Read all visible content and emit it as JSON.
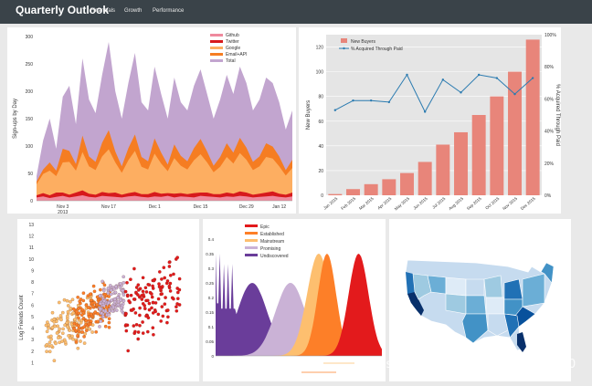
{
  "nav": {
    "brand": "Quarterly Outlook",
    "links": [
      "Financials",
      "Growth",
      "Performance"
    ]
  },
  "colors": {
    "navbar": "#3a4349",
    "github": "#ef8a9e",
    "twitter": "#d7191c",
    "google": "#fdae61",
    "email_api": "#f57d22",
    "total": "#c2a5cf",
    "bar": "#e8857a",
    "line": "#2b7bb0",
    "epic": "#e31a1c",
    "established": "#fd7f28",
    "mainstream": "#fdbf6f",
    "promising": "#cab2d6",
    "undiscovered": "#6a3d9a"
  },
  "chart_data": [
    {
      "type": "area",
      "title": "",
      "ylabel": "Sign-ups by Day",
      "ylim": [
        0,
        300
      ],
      "yticks": [
        "0",
        "50",
        "100",
        "150",
        "200",
        "250",
        "300"
      ],
      "xticks": [
        "Nov 3",
        "Nov 17",
        "Dec 1",
        "Dec 15",
        "Dec 29",
        "Jan 12"
      ],
      "xtick_sub": "2013",
      "legend": [
        "Github",
        "Twitter",
        "Google",
        "Email+API",
        "Total"
      ],
      "series": [
        {
          "name": "Github",
          "values": [
            6,
            8,
            5,
            7,
            9,
            6,
            8,
            10,
            7,
            6,
            9,
            8,
            7,
            6,
            8,
            9,
            7,
            6,
            8,
            7,
            9,
            6,
            8,
            7,
            6,
            9,
            8,
            7,
            6,
            8,
            7,
            9,
            8,
            6,
            7,
            8,
            9,
            7,
            6,
            8
          ]
        },
        {
          "name": "Twitter",
          "values": [
            4,
            6,
            5,
            8,
            6,
            5,
            7,
            9,
            6,
            5,
            7,
            6,
            8,
            5,
            6,
            7,
            5,
            6,
            8,
            6,
            5,
            7,
            6,
            5,
            8,
            6,
            7,
            5,
            6,
            7,
            6,
            8,
            7,
            5,
            6,
            7,
            8,
            6,
            5,
            7
          ]
        },
        {
          "name": "Google",
          "values": [
            20,
            35,
            45,
            30,
            55,
            60,
            40,
            70,
            50,
            45,
            65,
            80,
            55,
            40,
            60,
            75,
            50,
            45,
            70,
            55,
            40,
            65,
            50,
            45,
            60,
            70,
            55,
            40,
            50,
            65,
            55,
            70,
            60,
            45,
            50,
            65,
            60,
            50,
            35,
            45
          ]
        },
        {
          "name": "Email+API",
          "values": [
            5,
            8,
            15,
            10,
            25,
            20,
            12,
            30,
            18,
            15,
            25,
            35,
            20,
            12,
            22,
            30,
            18,
            15,
            28,
            20,
            12,
            25,
            18,
            15,
            22,
            28,
            20,
            12,
            18,
            25,
            20,
            28,
            22,
            15,
            18,
            25,
            22,
            18,
            10,
            15
          ]
        },
        {
          "name": "Total",
          "values": [
            45,
            110,
            150,
            95,
            190,
            210,
            140,
            260,
            185,
            160,
            230,
            290,
            200,
            150,
            215,
            270,
            180,
            165,
            245,
            195,
            150,
            225,
            180,
            165,
            210,
            240,
            195,
            150,
            185,
            230,
            195,
            245,
            215,
            165,
            185,
            225,
            215,
            180,
            130,
            165
          ]
        }
      ]
    },
    {
      "type": "bar",
      "ylabel": "New Buyers",
      "y2label": "% Acquired Through Paid",
      "ylim": [
        0,
        130
      ],
      "y2lim": [
        0,
        100
      ],
      "yticks": [
        "0",
        "20",
        "40",
        "60",
        "80",
        "100",
        "120"
      ],
      "y2ticks": [
        "0%",
        "20%",
        "40%",
        "60%",
        "80%",
        "100%"
      ],
      "categories": [
        "Jan 2015",
        "Feb 2015",
        "Mar 2015",
        "Apr 2015",
        "May 2015",
        "Jun 2015",
        "Jul 2015",
        "Aug 2015",
        "Sep 2015",
        "Oct 2015",
        "Nov 2015",
        "Dec 2015"
      ],
      "legend": [
        "New Buyers",
        "% Acquired Through Paid"
      ],
      "series": [
        {
          "name": "New Buyers",
          "values": [
            1,
            5,
            9,
            13,
            18,
            27,
            41,
            51,
            65,
            80,
            100,
            126
          ]
        },
        {
          "name": "% Acquired Through Paid",
          "values": [
            53,
            59,
            59,
            58,
            75,
            52,
            72,
            64,
            75,
            73,
            63,
            73
          ]
        }
      ]
    },
    {
      "type": "scatter",
      "ylabel": "Log Friends Count",
      "ylim": [
        0,
        13
      ],
      "yticks": [
        "1",
        "2",
        "3",
        "4",
        "5",
        "6",
        "7",
        "8",
        "9",
        "10",
        "11",
        "12",
        "13"
      ],
      "series": [
        {
          "name": "Mainstream",
          "x_range": [
            0.02,
            0.35
          ]
        },
        {
          "name": "Established",
          "x_range": [
            0.15,
            0.55
          ]
        },
        {
          "name": "Promising",
          "x_range": [
            0.3,
            0.6
          ]
        },
        {
          "name": "Epic",
          "x_range": [
            0.5,
            0.95
          ]
        }
      ]
    },
    {
      "type": "area",
      "ylim": [
        0,
        0.45
      ],
      "yticks": [
        "0",
        "0.05",
        "0.1",
        "0.15",
        "0.2",
        "0.25",
        "0.3",
        "0.35",
        "0.4"
      ],
      "legend": [
        "Epic",
        "Established",
        "Mainstream",
        "Promising",
        "Undiscovered"
      ],
      "series": [
        {
          "name": "Undiscovered",
          "peak": 0.25
        },
        {
          "name": "Promising",
          "peak": 0.25
        },
        {
          "name": "Mainstream",
          "peak": 0.35
        },
        {
          "name": "Established",
          "peak": 0.35
        },
        {
          "name": "Epic",
          "peak": 0.35
        }
      ]
    }
  ],
  "watermark": "https://blog.csdn.net/lei347795790"
}
